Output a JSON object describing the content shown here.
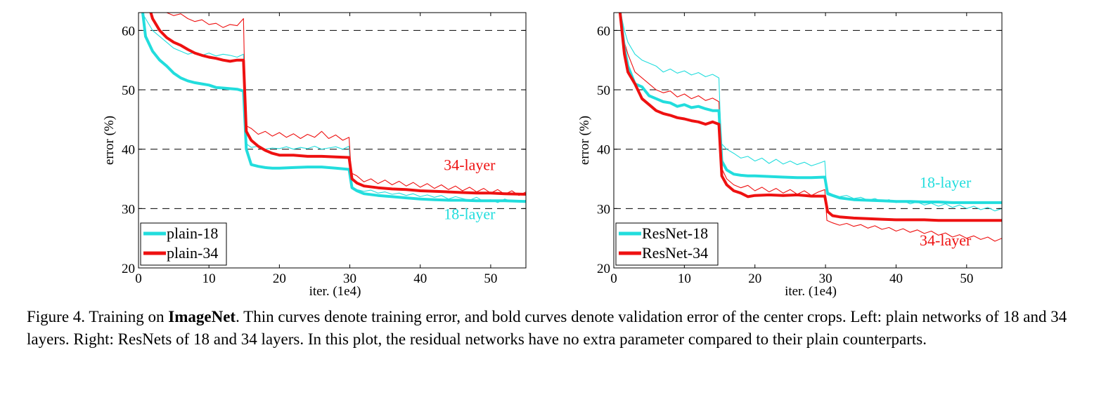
{
  "chart_data": [
    {
      "type": "line",
      "xlabel": "iter. (1e4)",
      "ylabel": "error (%)",
      "xlim": [
        0,
        55
      ],
      "ylim": [
        20,
        63
      ],
      "xticks": [
        0,
        10,
        20,
        30,
        40,
        50
      ],
      "yticks": [
        20,
        30,
        40,
        50,
        60
      ],
      "grid": "horizontal-dashed",
      "legend_position": "bottom-left",
      "legend": [
        "plain-18",
        "plain-34"
      ],
      "annotations": [
        {
          "text": "34-layer",
          "x": 47,
          "y": 36.5,
          "color": "#ee1111"
        },
        {
          "text": "18-layer",
          "x": 47,
          "y": 28.2,
          "color": "#22dddd"
        }
      ],
      "series": [
        {
          "name": "plain-18",
          "kind": "validation",
          "color": "#22dddd",
          "x": [
            0.5,
            1,
            2,
            3,
            4,
            5,
            6,
            7,
            8,
            9,
            10,
            11,
            12,
            13,
            14,
            14.9,
            15.3,
            16,
            17,
            18,
            19,
            20,
            22,
            24,
            26,
            28,
            29.9,
            30.3,
            31,
            32,
            34,
            36,
            38,
            40,
            42,
            44,
            46,
            48,
            50,
            52,
            55
          ],
          "y": [
            64,
            59,
            56.5,
            55,
            54,
            52.8,
            52,
            51.5,
            51.2,
            51,
            50.8,
            50.4,
            50.3,
            50.2,
            50.1,
            49.8,
            40,
            37.4,
            37.1,
            36.9,
            36.8,
            36.8,
            36.9,
            37,
            37,
            36.8,
            36.6,
            33.5,
            33,
            32.5,
            32.2,
            32,
            31.8,
            31.6,
            31.5,
            31.4,
            31.4,
            31.3,
            31.3,
            31.3,
            31.2
          ]
        },
        {
          "name": "plain-34",
          "kind": "validation",
          "color": "#ee1111",
          "x": [
            1.5,
            2,
            3,
            4,
            5,
            6,
            7,
            8,
            9,
            10,
            11,
            12,
            13,
            14,
            14.9,
            15.3,
            16,
            17,
            18,
            19,
            20,
            22,
            24,
            26,
            28,
            29.9,
            30.3,
            31,
            32,
            34,
            36,
            38,
            40,
            42,
            44,
            46,
            48,
            50,
            52,
            55
          ],
          "y": [
            64,
            62,
            60,
            58.8,
            58,
            57.5,
            56.8,
            56.2,
            55.8,
            55.5,
            55.3,
            55,
            54.8,
            55,
            55,
            43,
            41.5,
            40.5,
            39.8,
            39.3,
            39,
            39,
            38.8,
            38.8,
            38.7,
            38.6,
            35,
            34.3,
            33.8,
            33.5,
            33.3,
            33.2,
            33,
            32.9,
            32.8,
            32.7,
            32.6,
            32.6,
            32.5,
            32.4
          ]
        },
        {
          "name": "plain-18 train",
          "kind": "training",
          "color": "#22dddd",
          "x": [
            0.5,
            1,
            2,
            3,
            4,
            5,
            6,
            7,
            8,
            9,
            10,
            11,
            12,
            13,
            14,
            14.9,
            15.2,
            16,
            17,
            18,
            19,
            20,
            21,
            22,
            23,
            24,
            25,
            26,
            27,
            28,
            29,
            29.9,
            30.2,
            31,
            32,
            33,
            34,
            35,
            36,
            37,
            38,
            39,
            40,
            41,
            42,
            43,
            44,
            45,
            46,
            47,
            48,
            49,
            50,
            51,
            52,
            53,
            54,
            55
          ],
          "y": [
            63,
            62,
            60,
            59,
            58,
            57,
            56.5,
            56,
            56.3,
            55.8,
            56.2,
            55.7,
            56,
            55.8,
            55.5,
            56,
            41,
            40.3,
            40.5,
            40,
            40.2,
            40.1,
            40.4,
            40,
            40.3,
            40.1,
            40.5,
            40,
            40.2,
            40.4,
            40,
            40.5,
            33.8,
            33.2,
            32.9,
            33.1,
            32.6,
            32.8,
            32.4,
            32.6,
            32.2,
            32.5,
            32,
            32.3,
            31.9,
            32.2,
            31.6,
            32,
            31.7,
            31.4,
            31.9,
            31.2,
            31.5,
            31,
            31.6,
            31.2,
            31.1,
            31.4
          ]
        },
        {
          "name": "plain-34 train",
          "kind": "training",
          "color": "#ee1111",
          "x": [
            3,
            4,
            5,
            6,
            7,
            8,
            9,
            10,
            11,
            12,
            13,
            14,
            14.9,
            15.2,
            16,
            17,
            18,
            19,
            20,
            21,
            22,
            23,
            24,
            25,
            26,
            27,
            28,
            29,
            29.9,
            30.2,
            31,
            32,
            33,
            34,
            35,
            36,
            37,
            38,
            39,
            40,
            41,
            42,
            43,
            44,
            45,
            46,
            47,
            48,
            49,
            50,
            51,
            52,
            53,
            54,
            55
          ],
          "y": [
            63.5,
            63,
            62.5,
            62.8,
            62,
            61.5,
            61.8,
            61,
            61.2,
            60.5,
            61,
            60.8,
            62,
            44,
            43.5,
            42.5,
            43,
            42.2,
            42.8,
            42,
            42.6,
            41.8,
            42.5,
            42,
            43,
            41.8,
            42.4,
            41.5,
            42,
            36,
            35.5,
            34.5,
            35,
            34.2,
            34.8,
            34,
            34.6,
            33.8,
            34.4,
            33.6,
            34.2,
            33.4,
            34,
            33.2,
            33.8,
            33,
            33.6,
            32.8,
            33.4,
            32.6,
            33.2,
            32.4,
            33,
            32.2,
            32.8
          ]
        }
      ]
    },
    {
      "type": "line",
      "xlabel": "iter. (1e4)",
      "ylabel": "error (%)",
      "xlim": [
        0,
        55
      ],
      "ylim": [
        20,
        63
      ],
      "xticks": [
        0,
        10,
        20,
        30,
        40,
        50
      ],
      "yticks": [
        20,
        30,
        40,
        50,
        60
      ],
      "grid": "horizontal-dashed",
      "legend_position": "bottom-left",
      "legend": [
        "ResNet-18",
        "ResNet-34"
      ],
      "annotations": [
        {
          "text": "18-layer",
          "x": 47,
          "y": 33.5,
          "color": "#22dddd"
        },
        {
          "text": "34-layer",
          "x": 47,
          "y": 23.8,
          "color": "#ee1111"
        }
      ],
      "series": [
        {
          "name": "ResNet-18",
          "kind": "validation",
          "color": "#22dddd",
          "x": [
            0.8,
            1.5,
            2,
            3,
            4,
            5,
            6,
            7,
            8,
            9,
            10,
            11,
            12,
            13,
            14,
            14.9,
            15.3,
            16,
            17,
            18,
            19,
            20,
            22,
            24,
            26,
            28,
            29.9,
            30.3,
            31,
            32,
            34,
            36,
            38,
            40,
            42,
            44,
            46,
            48,
            50,
            52,
            55
          ],
          "y": [
            64,
            57,
            54,
            51,
            50.5,
            49,
            48.5,
            48,
            47.8,
            47.2,
            47.5,
            47,
            47.2,
            46.8,
            46.5,
            46.5,
            38,
            36.5,
            35.8,
            35.6,
            35.5,
            35.5,
            35.4,
            35.3,
            35.2,
            35.2,
            35.3,
            32.5,
            32.2,
            31.8,
            31.5,
            31.4,
            31.3,
            31.2,
            31.2,
            31.1,
            31.1,
            31,
            31,
            31,
            31
          ]
        },
        {
          "name": "ResNet-34",
          "kind": "validation",
          "color": "#ee1111",
          "x": [
            0.8,
            1.5,
            2,
            3,
            4,
            5,
            6,
            7,
            8,
            9,
            10,
            11,
            12,
            13,
            14,
            14.9,
            15.3,
            16,
            17,
            18,
            19,
            20,
            22,
            24,
            26,
            28,
            29.9,
            30.3,
            31,
            32,
            34,
            36,
            38,
            40,
            42,
            44,
            46,
            48,
            50,
            52,
            55
          ],
          "y": [
            64,
            56,
            53,
            51,
            48.5,
            47.5,
            46.5,
            46,
            45.7,
            45.3,
            45.1,
            44.8,
            44.6,
            44.2,
            44.6,
            44.2,
            35.5,
            34,
            33,
            32.6,
            32,
            32.2,
            32.3,
            32.2,
            32.3,
            32.1,
            32.1,
            29.5,
            28.8,
            28.6,
            28.4,
            28.3,
            28.2,
            28.1,
            28.1,
            28.1,
            28,
            28,
            28,
            28,
            28
          ]
        },
        {
          "name": "ResNet-18 train",
          "kind": "training",
          "color": "#22dddd",
          "x": [
            0.8,
            1.5,
            2,
            3,
            4,
            5,
            6,
            7,
            8,
            9,
            10,
            11,
            12,
            13,
            14,
            14.9,
            15.2,
            16,
            17,
            18,
            19,
            20,
            21,
            22,
            23,
            24,
            25,
            26,
            27,
            28,
            29,
            29.9,
            30.2,
            31,
            32,
            33,
            34,
            35,
            36,
            37,
            38,
            39,
            40,
            41,
            42,
            43,
            44,
            45,
            46,
            47,
            48,
            49,
            50,
            51,
            52,
            53,
            54,
            55
          ],
          "y": [
            64,
            60,
            58,
            56,
            55,
            54.5,
            54,
            53,
            53.5,
            52.8,
            53.2,
            52.5,
            52.9,
            52.2,
            52.6,
            52,
            41,
            40,
            39.3,
            38.5,
            38.8,
            38,
            38.5,
            37.6,
            38.3,
            37.5,
            38,
            37.4,
            37.8,
            37.2,
            37.6,
            38,
            32.8,
            32.4,
            32,
            32.2,
            31.7,
            31.9,
            31.4,
            31.7,
            31.2,
            31.5,
            31,
            31.3,
            30.8,
            31.1,
            30.6,
            30.9,
            30.4,
            30.8,
            30.2,
            30.6,
            30,
            30.4,
            29.8,
            30.2,
            29.6,
            30
          ]
        },
        {
          "name": "ResNet-34 train",
          "kind": "training",
          "color": "#ee1111",
          "x": [
            0.8,
            1.5,
            2,
            3,
            4,
            5,
            6,
            7,
            8,
            9,
            10,
            11,
            12,
            13,
            14,
            14.9,
            15.2,
            16,
            17,
            18,
            19,
            20,
            21,
            22,
            23,
            24,
            25,
            26,
            27,
            28,
            29,
            29.9,
            30.2,
            31,
            32,
            33,
            34,
            35,
            36,
            37,
            38,
            39,
            40,
            41,
            42,
            43,
            44,
            45,
            46,
            47,
            48,
            49,
            50,
            51,
            52,
            53,
            54,
            55
          ],
          "y": [
            64,
            58,
            56,
            53,
            52,
            51,
            50,
            49.5,
            49.8,
            48.8,
            49.3,
            48.5,
            49,
            48.2,
            48.6,
            48,
            37,
            35,
            34,
            33.5,
            33.9,
            33,
            33.6,
            32.8,
            33.4,
            32.6,
            33.2,
            32.4,
            33,
            32.2,
            32.8,
            33.2,
            28,
            27.6,
            27.2,
            27.5,
            27,
            27.3,
            26.7,
            27.1,
            26.5,
            26.8,
            26.2,
            26.6,
            26,
            26.4,
            25.8,
            26.2,
            25.5,
            25.9,
            25.2,
            25.6,
            25,
            25.4,
            24.8,
            25.2,
            24.5,
            25
          ]
        }
      ]
    }
  ],
  "caption": {
    "lead": "Figure 4. Training on ",
    "bold": "ImageNet",
    "rest": ". Thin curves denote training error, and bold curves denote validation error of the center crops. Left: plain networks of 18 and 34 layers. Right: ResNets of 18 and 34 layers. In this plot, the residual networks have no extra parameter compared to their plain counterparts."
  }
}
